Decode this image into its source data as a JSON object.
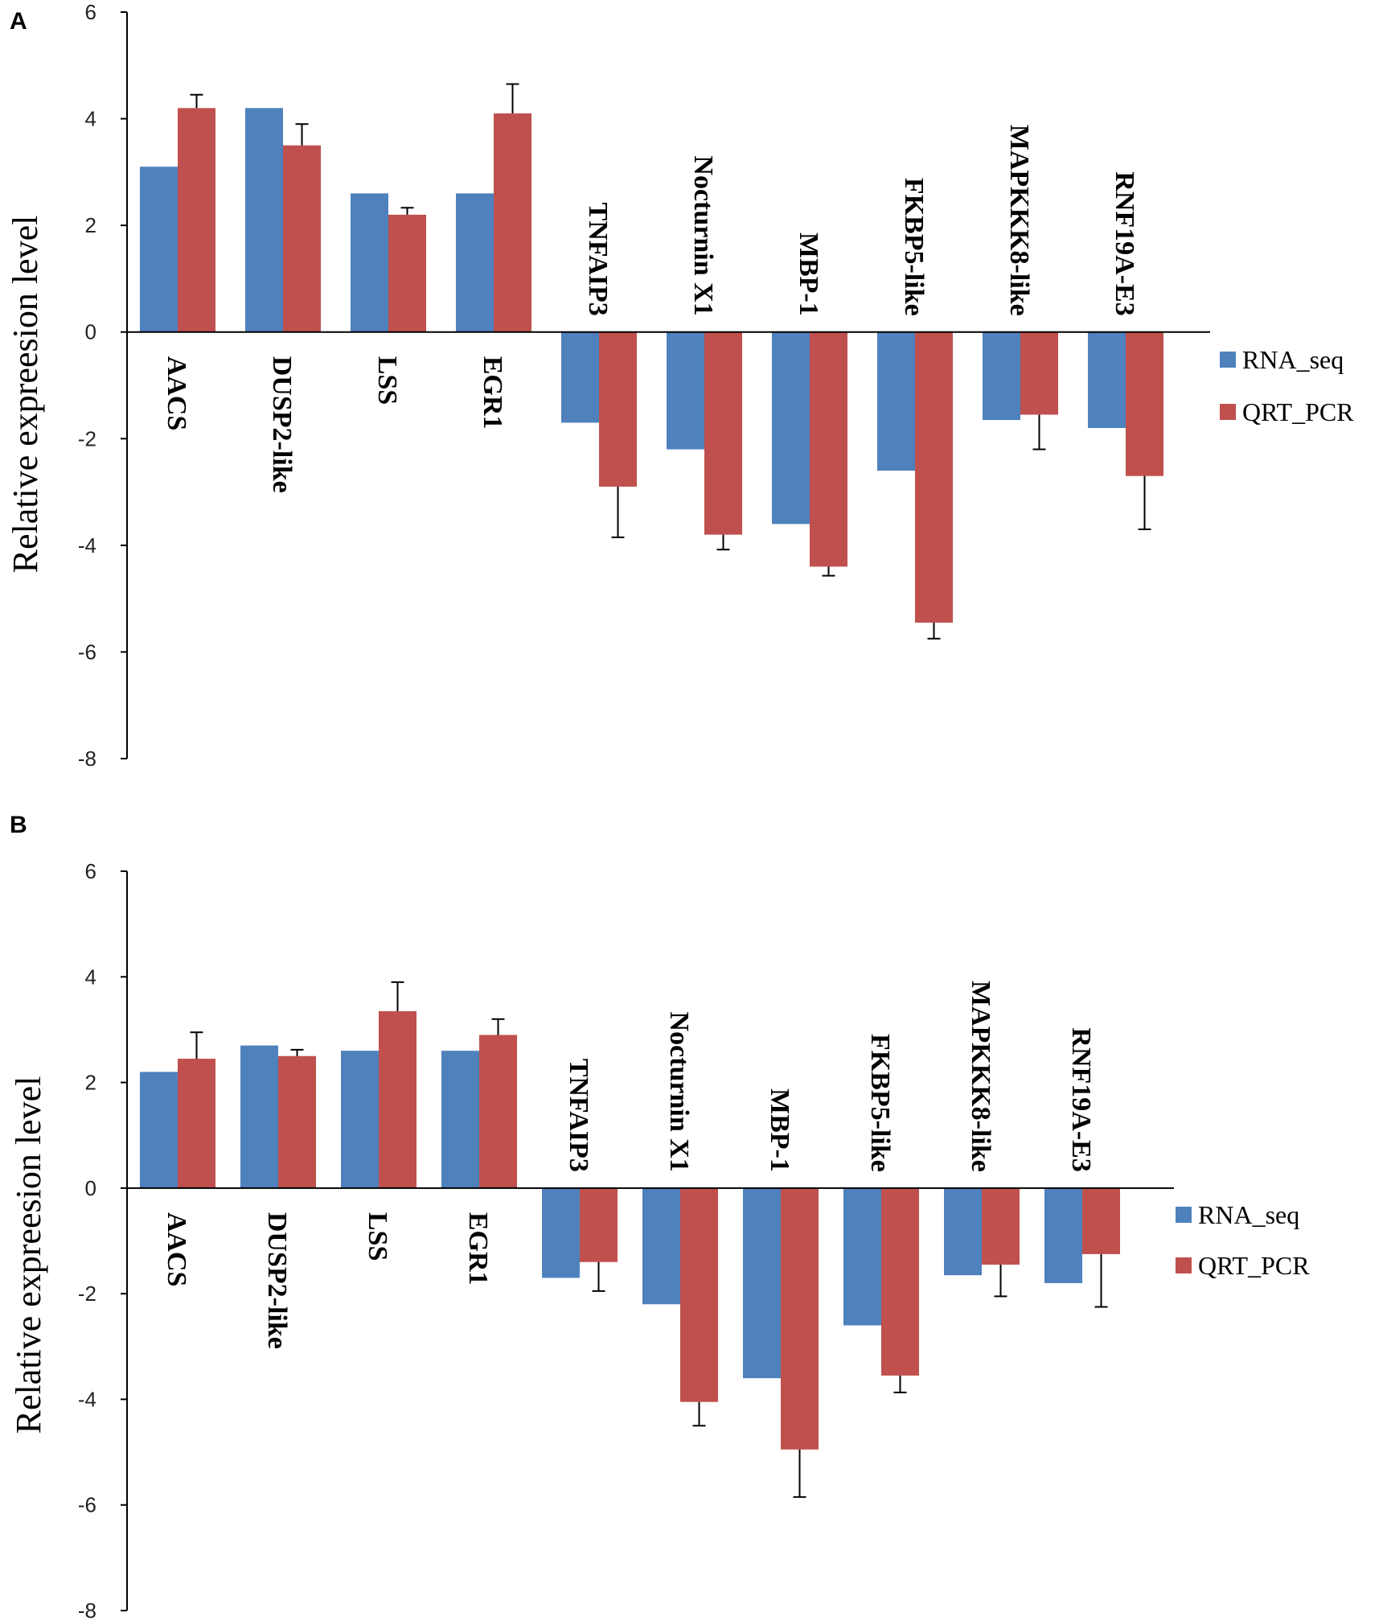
{
  "chart_data": [
    {
      "type": "bar",
      "panel": "A",
      "ylabel": "Relative expreesion level",
      "ylim": [
        -8,
        6
      ],
      "yticks": [
        6,
        4,
        2,
        0,
        -2,
        -4,
        -6,
        -8
      ],
      "categories": [
        "AACS",
        "DUSP2-like",
        "LSS",
        "EGR1",
        "TNFAIP3",
        "Nocturnin X1",
        "MBP-1",
        "FKBP5-like",
        "MAPKKK8-like",
        "RNF19A-E3"
      ],
      "series": [
        {
          "name": "RNA_seq",
          "color": "#4F81BD",
          "values": [
            3.1,
            4.2,
            2.6,
            2.6,
            -1.7,
            -2.2,
            -3.6,
            -2.6,
            -1.65,
            -1.8
          ]
        },
        {
          "name": "QRT_PCR",
          "color": "#C0504D",
          "values": [
            4.2,
            3.5,
            2.2,
            4.1,
            -2.9,
            -3.8,
            -4.4,
            -5.45,
            -1.55,
            -2.7
          ],
          "errors": [
            0.25,
            0.4,
            0.13,
            0.55,
            0.95,
            0.28,
            0.17,
            0.3,
            0.65,
            1.0
          ]
        }
      ]
    },
    {
      "type": "bar",
      "panel": "B",
      "ylabel": "Relative expreesion level",
      "ylim": [
        -8,
        6
      ],
      "yticks": [
        6,
        4,
        2,
        0,
        -2,
        -4,
        -6,
        -8
      ],
      "categories": [
        "AACS",
        "DUSP2-like",
        "LSS",
        "EGR1",
        "TNFAIP3",
        "Nocturnin X1",
        "MBP-1",
        "FKBP5-like",
        "MAPKKK8-like",
        "RNF19A-E3"
      ],
      "series": [
        {
          "name": "RNA_seq",
          "color": "#4F81BD",
          "values": [
            2.2,
            2.7,
            2.6,
            2.6,
            -1.7,
            -2.2,
            -3.6,
            -2.6,
            -1.65,
            -1.8
          ]
        },
        {
          "name": "QRT_PCR",
          "color": "#C0504D",
          "values": [
            2.45,
            2.5,
            3.35,
            2.9,
            -1.4,
            -4.05,
            -4.95,
            -3.55,
            -1.45,
            -1.25
          ],
          "errors": [
            0.5,
            0.12,
            0.55,
            0.3,
            0.55,
            0.45,
            0.9,
            0.32,
            0.6,
            1.0
          ]
        }
      ]
    }
  ]
}
